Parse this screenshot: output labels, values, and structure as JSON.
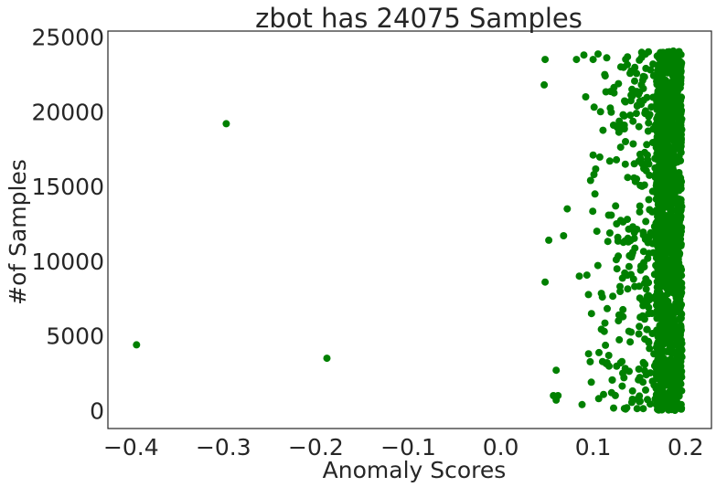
{
  "chart_data": {
    "type": "scatter",
    "title": "zbot has 24075 Samples",
    "xlabel": "Anomaly Scores",
    "ylabel": "#of Samples",
    "xlim": [
      -0.425,
      0.228
    ],
    "ylim": [
      -1200,
      25400
    ],
    "xticks": [
      -0.4,
      -0.3,
      -0.2,
      -0.1,
      0.0,
      0.1,
      0.2
    ],
    "xtick_labels": [
      "−0.4",
      "−0.3",
      "−0.2",
      "−0.1",
      "0.0",
      "0.1",
      "0.2"
    ],
    "yticks": [
      0,
      5000,
      10000,
      15000,
      20000,
      25000
    ],
    "ytick_labels": [
      "0",
      "5000",
      "10000",
      "15000",
      "20000",
      "25000"
    ],
    "grid": false,
    "color": "#008000",
    "series": [
      {
        "points": [
          [
            -0.394,
            4400
          ],
          [
            -0.297,
            19200
          ],
          [
            -0.188,
            3500
          ],
          [
            0.048,
            23500
          ],
          [
            0.047,
            21800
          ],
          [
            0.052,
            11400
          ],
          [
            0.048,
            8600
          ],
          [
            0.06,
            2700
          ],
          [
            0.057,
            1000
          ],
          [
            0.062,
            1000
          ],
          [
            0.06,
            700
          ],
          [
            0.072,
            13500
          ],
          [
            0.068,
            11700
          ],
          [
            0.082,
            23500
          ],
          [
            0.085,
            9000
          ],
          [
            0.088,
            400
          ],
          [
            0.09,
            23800
          ],
          [
            0.092,
            21000
          ],
          [
            0.095,
            3800
          ],
          [
            0.098,
            1900
          ],
          [
            0.1,
            23500
          ],
          [
            0.1,
            17100
          ],
          [
            0.102,
            14500
          ],
          [
            0.104,
            12000
          ],
          [
            0.106,
            800
          ],
          [
            0.108,
            20000
          ],
          [
            0.11,
            7600
          ],
          [
            0.112,
            5300
          ],
          [
            0.113,
            22400
          ],
          [
            0.115,
            3200
          ],
          [
            0.118,
            16700
          ],
          [
            0.12,
            1200
          ],
          [
            0.122,
            19100
          ],
          [
            0.125,
            10100
          ],
          [
            0.128,
            6400
          ],
          [
            0.13,
            23000
          ],
          [
            0.132,
            2500
          ],
          [
            0.135,
            18000
          ],
          [
            0.137,
            12800
          ],
          [
            0.14,
            4600
          ],
          [
            0.142,
            21500
          ],
          [
            0.145,
            8300
          ],
          [
            0.147,
            15500
          ],
          [
            0.15,
            600
          ],
          [
            0.152,
            20500
          ],
          [
            0.154,
            9700
          ],
          [
            0.156,
            3100
          ],
          [
            0.158,
            17800
          ],
          [
            0.16,
            6900
          ],
          [
            0.162,
            22800
          ],
          [
            0.164,
            13300
          ],
          [
            0.166,
            1700
          ],
          [
            0.168,
            11200
          ],
          [
            0.17,
            19700
          ],
          [
            0.172,
            5700
          ]
        ]
      }
    ],
    "dense_band": {
      "x_min": 0.168,
      "x_max": 0.196,
      "y_min": 0,
      "y_max": 24075
    },
    "sparse_region": {
      "x_min": 0.085,
      "x_max": 0.168,
      "y_min": 0,
      "y_max": 24075
    }
  }
}
